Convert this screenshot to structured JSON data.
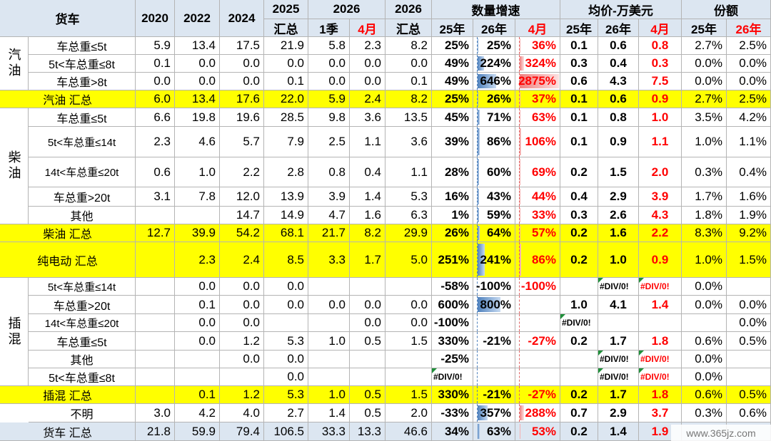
{
  "header": {
    "corner": "货车",
    "y2020": "2020",
    "y2022": "2022",
    "y2024": "2024",
    "total2025": [
      "2025",
      "汇总"
    ],
    "y2026": "2026",
    "sub2026": [
      "1季",
      "4月"
    ],
    "total2026": [
      "2026",
      "汇总"
    ],
    "groups": [
      {
        "title": "数量增速",
        "subs": [
          "25年",
          "26年",
          "4月"
        ]
      },
      {
        "title": "均价-万美元",
        "subs": [
          "25年",
          "26年",
          "4月"
        ]
      },
      {
        "title": "份额",
        "subs": [
          "25年",
          "26年"
        ]
      }
    ]
  },
  "groups": [
    "汽油",
    "柴油",
    "插混"
  ],
  "rows": [
    {
      "label": "车总重≤5t",
      "cells": [
        "5.9",
        "13.4",
        "17.5",
        "21.9",
        "5.8",
        "2.3",
        "8.2",
        "25%",
        "25%",
        "36%",
        "0.1",
        "0.6",
        "0.8",
        "2.7%",
        "2.5%"
      ]
    },
    {
      "label": "5t<车总重≤8t",
      "cells": [
        "0.1",
        "0.0",
        "0.0",
        "0.0",
        "0.0",
        "0.0",
        "0.0",
        "49%",
        "224%",
        "324%",
        "0.3",
        "0.4",
        "0.3",
        "0.0%",
        "0.0%"
      ]
    },
    {
      "label": "车总重>8t",
      "cells": [
        "0.0",
        "0.0",
        "0.0",
        "0.1",
        "0.0",
        "0.0",
        "0.1",
        "49%",
        "646%",
        "2875%",
        "0.6",
        "4.3",
        "7.5",
        "0.0%",
        "0.0%"
      ]
    },
    {
      "label": "汽油 汇总",
      "cells": [
        "6.0",
        "13.4",
        "17.6",
        "22.0",
        "5.9",
        "2.4",
        "8.2",
        "25%",
        "26%",
        "37%",
        "0.1",
        "0.6",
        "0.9",
        "2.7%",
        "2.5%"
      ]
    },
    {
      "label": "车总重≤5t",
      "cells": [
        "6.6",
        "19.8",
        "19.6",
        "28.5",
        "9.8",
        "3.6",
        "13.5",
        "45%",
        "71%",
        "63%",
        "0.1",
        "0.8",
        "1.0",
        "3.5%",
        "4.2%"
      ]
    },
    {
      "label": "5t<车总重≤14t",
      "cells": [
        "2.3",
        "4.6",
        "5.7",
        "7.9",
        "2.5",
        "1.1",
        "3.6",
        "39%",
        "86%",
        "106%",
        "0.1",
        "0.9",
        "1.1",
        "1.0%",
        "1.1%"
      ]
    },
    {
      "label": "14t<车总重≤20t",
      "cells": [
        "0.6",
        "1.0",
        "2.2",
        "2.8",
        "0.8",
        "0.4",
        "1.1",
        "28%",
        "60%",
        "69%",
        "0.2",
        "1.5",
        "2.0",
        "0.3%",
        "0.4%"
      ]
    },
    {
      "label": "车总重>20t",
      "cells": [
        "3.1",
        "7.8",
        "12.0",
        "13.9",
        "3.9",
        "1.4",
        "5.3",
        "16%",
        "43%",
        "44%",
        "0.4",
        "2.9",
        "3.9",
        "1.7%",
        "1.6%"
      ]
    },
    {
      "label": "其他",
      "cells": [
        null,
        null,
        "14.7",
        "14.9",
        "4.7",
        "1.6",
        "6.3",
        "1%",
        "59%",
        "33%",
        "0.3",
        "2.6",
        "4.3",
        "1.8%",
        "1.9%"
      ]
    },
    {
      "label": "柴油 汇总",
      "cells": [
        "12.7",
        "39.9",
        "54.2",
        "68.1",
        "21.7",
        "8.2",
        "29.9",
        "26%",
        "64%",
        "57%",
        "0.2",
        "1.6",
        "2.2",
        "8.3%",
        "9.2%"
      ]
    },
    {
      "label": "纯电动 汇总",
      "cells": [
        null,
        "2.3",
        "2.4",
        "8.5",
        "3.3",
        "1.7",
        "5.0",
        "251%",
        "241%",
        "86%",
        "0.2",
        "1.0",
        "0.9",
        "1.0%",
        "1.5%"
      ]
    },
    {
      "label": "5t<车总重≤14t",
      "cells": [
        null,
        "0.0",
        "0.0",
        "0.0",
        null,
        null,
        null,
        "-58%",
        "-100%",
        "-100%",
        null,
        "#DIV/0!",
        "#DIV/0!",
        "0.0%",
        null
      ]
    },
    {
      "label": "车总重>20t",
      "cells": [
        null,
        "0.1",
        "0.0",
        "0.0",
        "0.0",
        "0.0",
        "0.0",
        "600%",
        "800%",
        null,
        "1.0",
        "4.1",
        "1.4",
        "0.0%",
        "0.0%"
      ]
    },
    {
      "label": "14t<车总重≤20t",
      "cells": [
        null,
        "0.0",
        "0.0",
        null,
        null,
        "0.0",
        "0.0",
        "-100%",
        null,
        null,
        "#DIV/0!",
        null,
        null,
        null,
        "0.0%"
      ]
    },
    {
      "label": "车总重≤5t",
      "cells": [
        null,
        "0.0",
        "1.2",
        "5.3",
        "1.0",
        "0.5",
        "1.5",
        "330%",
        "-21%",
        "-27%",
        "0.2",
        "1.7",
        "1.8",
        "0.6%",
        "0.5%"
      ]
    },
    {
      "label": "其他",
      "cells": [
        null,
        null,
        "0.0",
        "0.0",
        null,
        null,
        null,
        "-25%",
        null,
        null,
        null,
        "#DIV/0!",
        "#DIV/0!",
        "0.0%",
        null
      ]
    },
    {
      "label": "5t<车总重≤8t",
      "cells": [
        null,
        null,
        null,
        "0.0",
        null,
        null,
        null,
        "#DIV/0!",
        null,
        null,
        null,
        "#DIV/0!",
        "#DIV/0!",
        "0.0%",
        null
      ]
    },
    {
      "label": "插混 汇总",
      "cells": [
        null,
        "0.1",
        "1.2",
        "5.3",
        "1.0",
        "0.5",
        "1.5",
        "330%",
        "-21%",
        "-27%",
        "0.2",
        "1.7",
        "1.8",
        "0.6%",
        "0.5%"
      ]
    },
    {
      "label": "不明",
      "cells": [
        "3.0",
        "4.2",
        "4.0",
        "2.7",
        "1.4",
        "0.5",
        "2.0",
        "-33%",
        "357%",
        "288%",
        "0.7",
        "2.9",
        "3.7",
        "0.3%",
        "0.6%"
      ]
    },
    {
      "label": "货车 汇总",
      "cells": [
        "21.8",
        "59.9",
        "79.4",
        "106.5",
        "33.3",
        "13.3",
        "46.6",
        "34%",
        "63%",
        "53%",
        "0.2",
        "1.4",
        "1.9",
        null,
        null
      ]
    }
  ],
  "watermark": "www.365jz.com"
}
